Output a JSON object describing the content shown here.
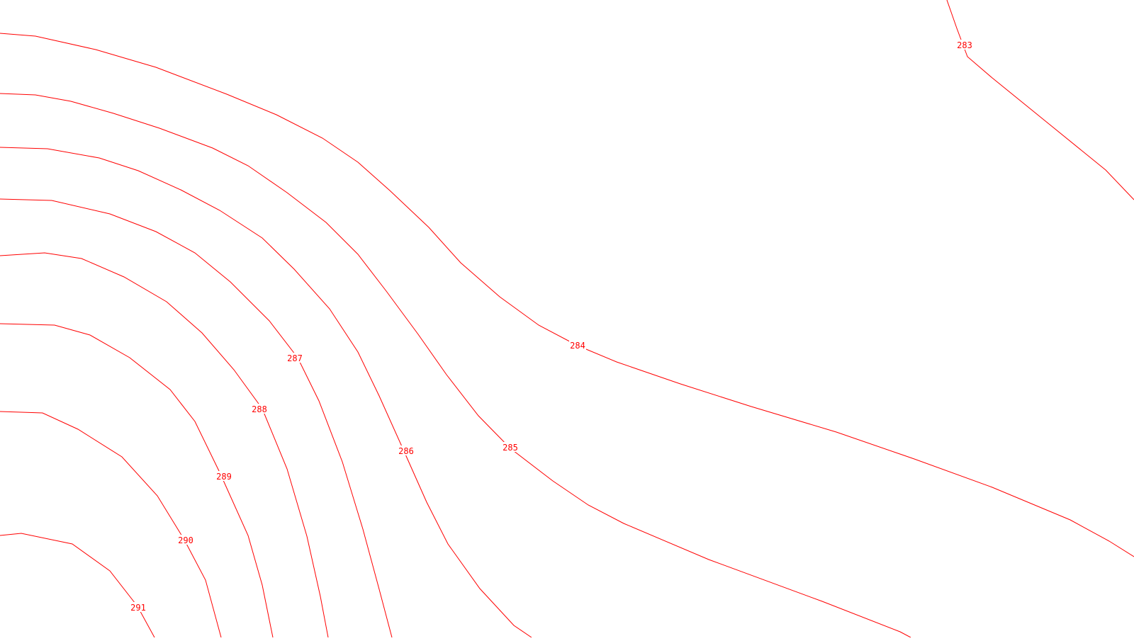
{
  "map": {
    "background_color": "#ffffff",
    "contour_color": "#ff0000",
    "contours": [
      {
        "elevation": "283"
      },
      {
        "elevation": "284"
      },
      {
        "elevation": "285"
      },
      {
        "elevation": "286"
      },
      {
        "elevation": "287"
      },
      {
        "elevation": "288"
      },
      {
        "elevation": "289"
      },
      {
        "elevation": "290"
      },
      {
        "elevation": "291"
      }
    ]
  }
}
